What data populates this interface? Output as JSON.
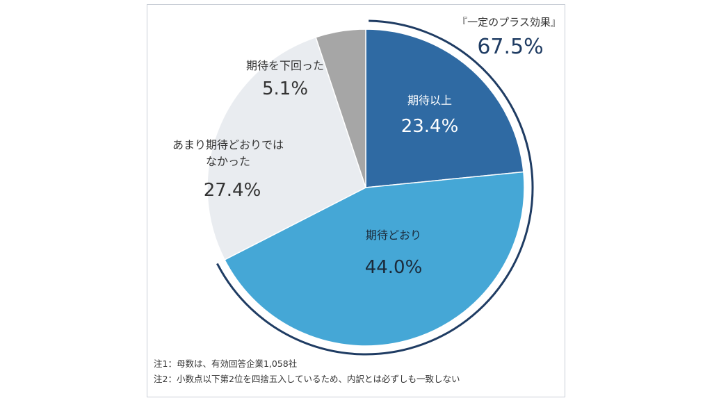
{
  "chart_data": {
    "type": "pie",
    "slices": [
      {
        "label": "期待以上",
        "value": 23.4,
        "value_label": "23.4%",
        "color": "#2f6aa3"
      },
      {
        "label": "期待どおり",
        "value": 44.0,
        "value_label": "44.0%",
        "color": "#45a7d6"
      },
      {
        "label": "あまり期待どおりでは\nなかった",
        "value": 27.4,
        "value_label": "27.4%",
        "color": "#e9ecf0"
      },
      {
        "label": "期待を下回った",
        "value": 5.1,
        "value_label": "5.1%",
        "color": "#a6a6a6"
      }
    ],
    "annotation": {
      "label": "『一定のプラス効果』",
      "value": "67.5%",
      "color": "#1f3c63"
    }
  },
  "notes": [
    "注1：母数は、有効回答企業1,058社",
    "注2：小数点以下第2位を四捨五入しているため、内訳とは必ずしも一致しない"
  ]
}
